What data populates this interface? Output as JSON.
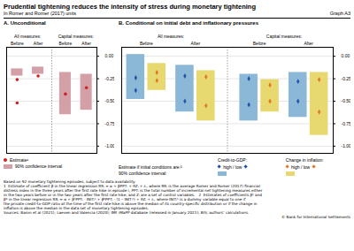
{
  "title": "Prudential tightening reduces the intensity of stress during monetary tightening",
  "subtitle": "In Romer and Romer (2017) units",
  "graph_label": "Graph A3",
  "chart_data": [
    {
      "type": "bar",
      "title": "A. Unconditional",
      "categories": [
        "Before",
        "After",
        "Before",
        "After"
      ],
      "groups": [
        "All measures:",
        "All measures:",
        "Capital measures:",
        "Capital measures:"
      ],
      "ylim": [
        -1.08,
        0.1
      ],
      "yticks": [
        {
          "value": 0.0,
          "label": "0.00"
        },
        {
          "value": -0.25,
          "label": "-0.25"
        },
        {
          "value": -0.5,
          "label": "-0.50"
        },
        {
          "value": -0.75,
          "label": "-0.75"
        },
        {
          "value": -1.0,
          "label": "-1.00"
        }
      ],
      "grid": true,
      "series": [
        {
          "name": "Estimate¹",
          "type": "scatter",
          "marker": "circle",
          "color": "#cc2222",
          "values": [
            [
              -0.26,
              -0.52
            ],
            [
              -0.22
            ],
            [
              -0.42
            ],
            [
              -0.35
            ]
          ]
        },
        {
          "name": "90% confidence interval",
          "type": "bar",
          "color": "#d4a0a8",
          "low": [
            -0.22,
            -0.2,
            -0.65,
            -0.6
          ],
          "high": [
            -0.14,
            -0.12,
            -0.18,
            -0.2
          ]
        }
      ]
    },
    {
      "type": "bar",
      "title": "B. Conditional on initial debt and inflationary pressures",
      "categories": [
        "Before",
        "After",
        "Before",
        "After"
      ],
      "groups": [
        "All measures:",
        "All measures:",
        "Capital measures:",
        "Capital measures:"
      ],
      "ylim": [
        -1.08,
        0.1
      ],
      "yticks": [
        {
          "value": 0.0,
          "label": "0.00"
        },
        {
          "value": -0.25,
          "label": "-0.25"
        },
        {
          "value": -0.5,
          "label": "-0.50"
        },
        {
          "value": -0.75,
          "label": "-0.75"
        },
        {
          "value": -1.0,
          "label": "-1.00"
        }
      ],
      "grid": true,
      "legend_labels": [
        "Estimate if initial conditions are:²",
        "90% confidence interval:"
      ],
      "series": [
        {
          "name": "Credit-to-GDP:",
          "type": "bar",
          "color": "#8cb8d8",
          "low": [
            -0.48,
            -0.62,
            -0.72,
            -0.68
          ],
          "high": [
            0.02,
            -0.1,
            -0.2,
            -0.18
          ]
        },
        {
          "name": "Credit-to-GDP:",
          "type": "scatter",
          "marker": "diamond",
          "color": "#2255aa",
          "label": "high / low",
          "values_high": [
            -0.24,
            -0.22,
            -0.25,
            -0.28
          ],
          "values_low": [
            -0.38,
            -0.5,
            -0.54,
            -0.5
          ]
        },
        {
          "name": "Change in inflation:",
          "type": "bar",
          "color": "#e8d870",
          "low": [
            -0.38,
            -0.72,
            -0.62,
            -0.88
          ],
          "high": [
            -0.08,
            -0.16,
            -0.26,
            -0.18
          ]
        },
        {
          "name": "Change in inflation:",
          "type": "scatter",
          "marker": "diamond",
          "color": "#e07820",
          "label": "high / low",
          "values_high": [
            -0.18,
            -0.23,
            -0.32,
            -0.26
          ],
          "values_low": [
            -0.27,
            -0.55,
            -0.5,
            -0.62
          ]
        }
      ]
    }
  ],
  "notes": [
    "Based on 92 monetary tightening episodes, subject to data availability.",
    "1  Estimate of coefficient β in the linear regression RRᵢ = α + βPPTᵢ + θZᵢ + εᵢ, where RRᵢ is the average Romer and Romer (2017) financial",
    "distress index in the three years after the first rate hike in episode i, PPTᵢ is the total number of incremental net tightening measures either",
    "in the two years before or in the two years after the first rate hike, and Zᵢ are a set of control variables.   2  Estimates of coefficients βʰ and",
    "βᵇ in the linear regression RRᵢ = α + βʰPPTᵢ · INITᵢʰ + βᵇPPTᵢ · (1 – INITᵢʰ) + θZᵢ + εᵢ, where INITᵢʰ is a dummy variable equal to one if",
    "the private credit-to-GDP ratio at the time of the first rate hike is above the median of its country-specific distribution or if the change in",
    "inflation is above the median in the data set of monetary tightening episodes."
  ],
  "sources": "Sources: Baron et al (2021); Laeven and Valencia (2020); IMF iMaPP database (released in January 2021); BIS; authors’ calculations.",
  "copyright": "© Bank for International Settlements"
}
